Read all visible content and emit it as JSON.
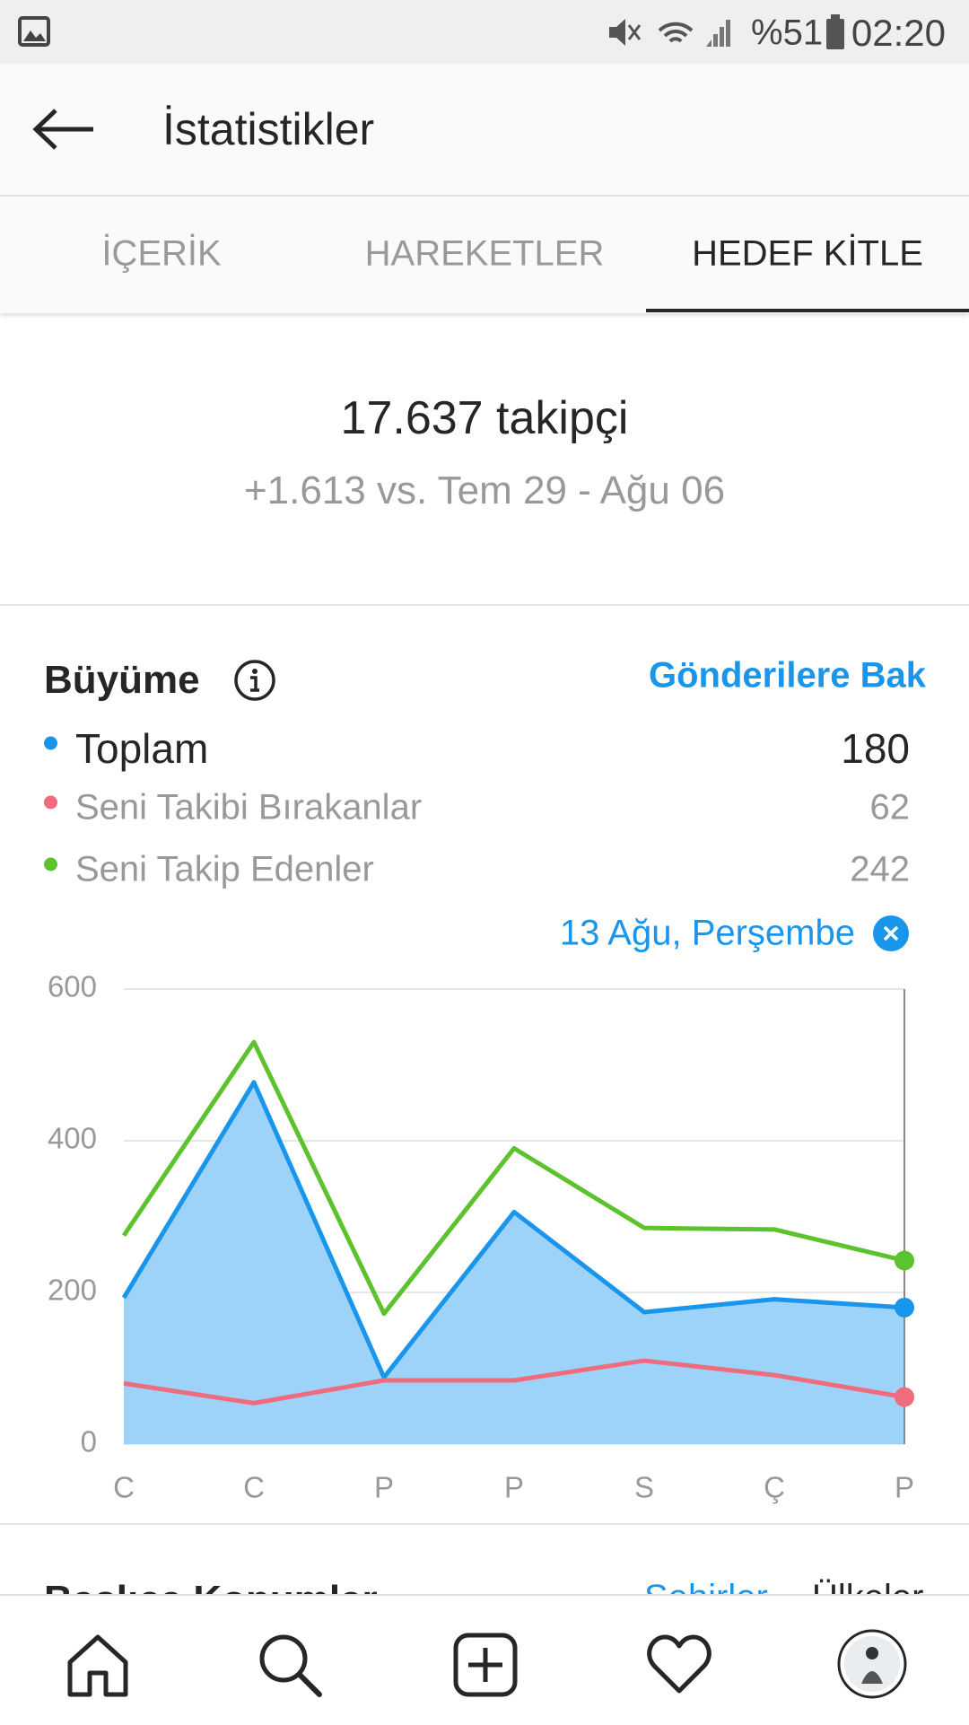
{
  "status_bar": {
    "battery": "%51",
    "time": "02:20"
  },
  "header": {
    "title": "İstatistikler"
  },
  "tabs": [
    "İÇERİK",
    "HAREKETLER",
    "HEDEF KİTLE"
  ],
  "summary": {
    "followers": "17.637 takipçi",
    "comparison": "+1.613 vs. Tem 29 - Ağu 06"
  },
  "growth": {
    "link": "Gönderilere Bak"
  },
  "chart_data": {
    "type": "line",
    "title": "Büyüme",
    "selected_label": "13 Ağu, Perşembe",
    "categories": [
      "C",
      "C",
      "P",
      "P",
      "S",
      "Ç",
      "P"
    ],
    "series": [
      {
        "name": "Toplam",
        "color": "#1a95ec",
        "fill": "#9dd3f8",
        "values": [
          193,
          477,
          88,
          306,
          174,
          191,
          180
        ]
      },
      {
        "name": "Seni Takibi Bırakanlar",
        "color": "#ef6b7e",
        "values": [
          80,
          54,
          84,
          84,
          110,
          91,
          62
        ]
      },
      {
        "name": "Seni Takip Edenler",
        "color": "#5cc22d",
        "values": [
          275,
          530,
          172,
          390,
          285,
          283,
          242
        ]
      }
    ],
    "ylim": [
      0,
      600
    ],
    "yticks": [
      0,
      200,
      400,
      600
    ],
    "grid": true
  },
  "next_section": {
    "title": "Başlıca Konumlar",
    "tabs": [
      "Şehirler",
      "Ülkeler"
    ]
  }
}
